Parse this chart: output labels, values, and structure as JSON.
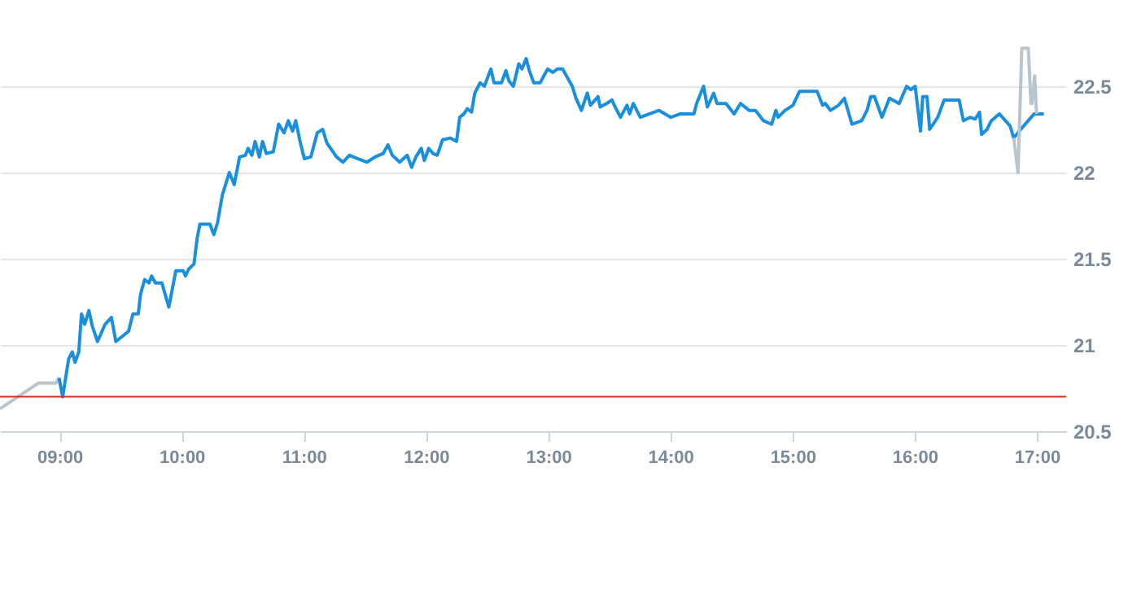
{
  "chart_data": {
    "type": "line",
    "xlim": [
      8.513,
      17.24
    ],
    "ylim": [
      20.5,
      23
    ],
    "xticks": [
      {
        "value": 9,
        "label": "09:00"
      },
      {
        "value": 10,
        "label": "10:00"
      },
      {
        "value": 11,
        "label": "11:00"
      },
      {
        "value": 12,
        "label": "12:00"
      },
      {
        "value": 13,
        "label": "13:00"
      },
      {
        "value": 14,
        "label": "14:00"
      },
      {
        "value": 15,
        "label": "15:00"
      },
      {
        "value": 16,
        "label": "16:00"
      },
      {
        "value": 17,
        "label": "17:00"
      }
    ],
    "yticks": [
      20.5,
      21,
      21.5,
      22,
      22.5
    ],
    "grid": "y",
    "ref_lines": [
      {
        "axis": "y",
        "value": 20.7,
        "color": "#d32f2f"
      }
    ],
    "series": [
      {
        "color": "#b8c4ce",
        "x": [
          8.513,
          8.829,
          8.974,
          8.996
        ],
        "values": [
          20.63,
          20.78,
          20.78,
          20.81
        ]
      },
      {
        "color": "#1a8fdd",
        "x": [
          8.996,
          9.026,
          9.075,
          9.105,
          9.127,
          9.158,
          9.18,
          9.206,
          9.241,
          9.268,
          9.311,
          9.373,
          9.425,
          9.461,
          9.566,
          9.601,
          9.645,
          9.662,
          9.697,
          9.732,
          9.754,
          9.785,
          9.838,
          9.895,
          9.952,
          10.013,
          10.031,
          10.057,
          10.101,
          10.127,
          10.149,
          10.202,
          10.232,
          10.263,
          10.294,
          10.333,
          10.39,
          10.43,
          10.474,
          10.522,
          10.544,
          10.575,
          10.601,
          10.636,
          10.662,
          10.693,
          10.75,
          10.794,
          10.838,
          10.873,
          10.908,
          10.934,
          10.969,
          11.004,
          11.057,
          11.11,
          11.154,
          11.189,
          11.268,
          11.32,
          11.373,
          11.443,
          11.518,
          11.583,
          11.649,
          11.689,
          11.724,
          11.785,
          11.846,
          11.882,
          11.917,
          11.961,
          11.987,
          12.022,
          12.057,
          12.092,
          12.136,
          12.197,
          12.25,
          12.276,
          12.311,
          12.338,
          12.373,
          12.399,
          12.443,
          12.478,
          12.531,
          12.557,
          12.618,
          12.654,
          12.68,
          12.715,
          12.759,
          12.785,
          12.82,
          12.846,
          12.882,
          12.934,
          12.996,
          13.039,
          13.075,
          13.118,
          13.197,
          13.228,
          13.272,
          13.32,
          13.346,
          13.408,
          13.425,
          13.478,
          13.522,
          13.548,
          13.592,
          13.645,
          13.667,
          13.697,
          13.754,
          13.908,
          14.004,
          14.083,
          14.193,
          14.215,
          14.272,
          14.303,
          14.355,
          14.382,
          14.456,
          14.522,
          14.575,
          14.645,
          14.697,
          14.763,
          14.829,
          14.864,
          14.882,
          14.939,
          15.004,
          15.057,
          15.202,
          15.246,
          15.268,
          15.311,
          15.377,
          15.425,
          15.487,
          15.566,
          15.61,
          15.64,
          15.671,
          15.732,
          15.794,
          15.873,
          15.934,
          15.969,
          16.004,
          16.048,
          16.066,
          16.101,
          16.123,
          16.189,
          16.241,
          16.364,
          16.399,
          16.452,
          16.496,
          16.531,
          16.548,
          16.592,
          16.627,
          16.693,
          16.781,
          16.811,
          16.868,
          16.978,
          17.057
        ],
        "values": [
          20.81,
          20.7,
          20.92,
          20.96,
          20.9,
          20.96,
          21.18,
          21.12,
          21.2,
          21.11,
          21.02,
          21.12,
          21.16,
          21.02,
          21.08,
          21.18,
          21.18,
          21.29,
          21.38,
          21.36,
          21.4,
          21.36,
          21.36,
          21.22,
          21.43,
          21.43,
          21.4,
          21.44,
          21.47,
          21.62,
          21.7,
          21.7,
          21.7,
          21.64,
          21.71,
          21.87,
          22,
          21.93,
          22.09,
          22.1,
          22.14,
          22.1,
          22.18,
          22.09,
          22.18,
          22.11,
          22.12,
          22.28,
          22.23,
          22.3,
          22.24,
          22.3,
          22.18,
          22.08,
          22.09,
          22.23,
          22.25,
          22.17,
          22.09,
          22.06,
          22.1,
          22.08,
          22.06,
          22.09,
          22.11,
          22.16,
          22.1,
          22.06,
          22.1,
          22.03,
          22.09,
          22.14,
          22.07,
          22.14,
          22.11,
          22.1,
          22.19,
          22.2,
          22.18,
          22.32,
          22.34,
          22.37,
          22.35,
          22.46,
          22.52,
          22.5,
          22.6,
          22.52,
          22.52,
          22.59,
          22.53,
          22.5,
          22.63,
          22.6,
          22.66,
          22.59,
          22.52,
          22.52,
          22.6,
          22.58,
          22.6,
          22.6,
          22.5,
          22.43,
          22.36,
          22.46,
          22.39,
          22.44,
          22.38,
          22.4,
          22.42,
          22.38,
          22.32,
          22.39,
          22.34,
          22.4,
          22.32,
          22.36,
          22.32,
          22.34,
          22.34,
          22.4,
          22.5,
          22.38,
          22.46,
          22.4,
          22.4,
          22.34,
          22.4,
          22.36,
          22.36,
          22.3,
          22.28,
          22.36,
          22.32,
          22.36,
          22.39,
          22.47,
          22.47,
          22.39,
          22.4,
          22.36,
          22.39,
          22.43,
          22.28,
          22.3,
          22.36,
          22.44,
          22.44,
          22.32,
          22.43,
          22.4,
          22.5,
          22.48,
          22.5,
          22.24,
          22.44,
          22.44,
          22.25,
          22.32,
          22.42,
          22.42,
          22.3,
          22.32,
          22.31,
          22.35,
          22.22,
          22.25,
          22.3,
          22.34,
          22.27,
          22.2,
          22.25,
          22.34,
          22.34
        ]
      },
      {
        "color": "#b8c4ce",
        "x": [
          16.811,
          16.846,
          16.877,
          16.93,
          16.952,
          16.96,
          16.982,
          16.996,
          17.0
        ],
        "values": [
          22.2,
          22.0,
          22.72,
          22.72,
          22.4,
          22.4,
          22.56,
          22.36,
          22.34
        ]
      }
    ]
  }
}
